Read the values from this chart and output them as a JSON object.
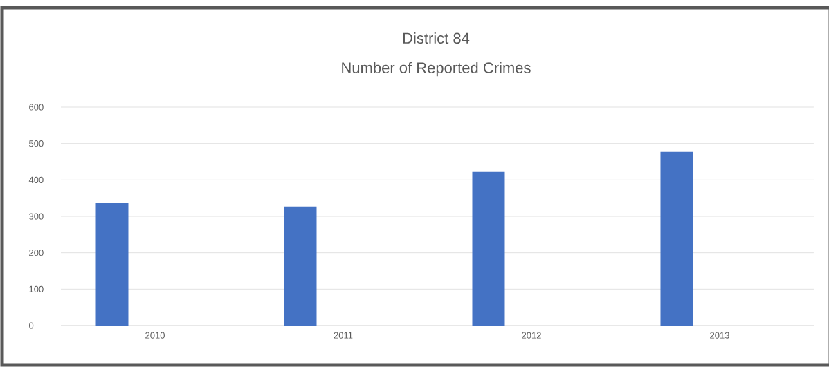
{
  "chart_data": {
    "type": "bar",
    "title": "District 84",
    "subtitle": "Number of Reported Crimes",
    "categories": [
      "2010",
      "2011",
      "2012",
      "2013"
    ],
    "values": [
      337,
      327,
      422,
      477
    ],
    "color": "#4472c4",
    "ylim": [
      0,
      600
    ],
    "yticks": [
      0,
      100,
      200,
      300,
      400,
      500,
      600
    ],
    "grid": "y"
  }
}
